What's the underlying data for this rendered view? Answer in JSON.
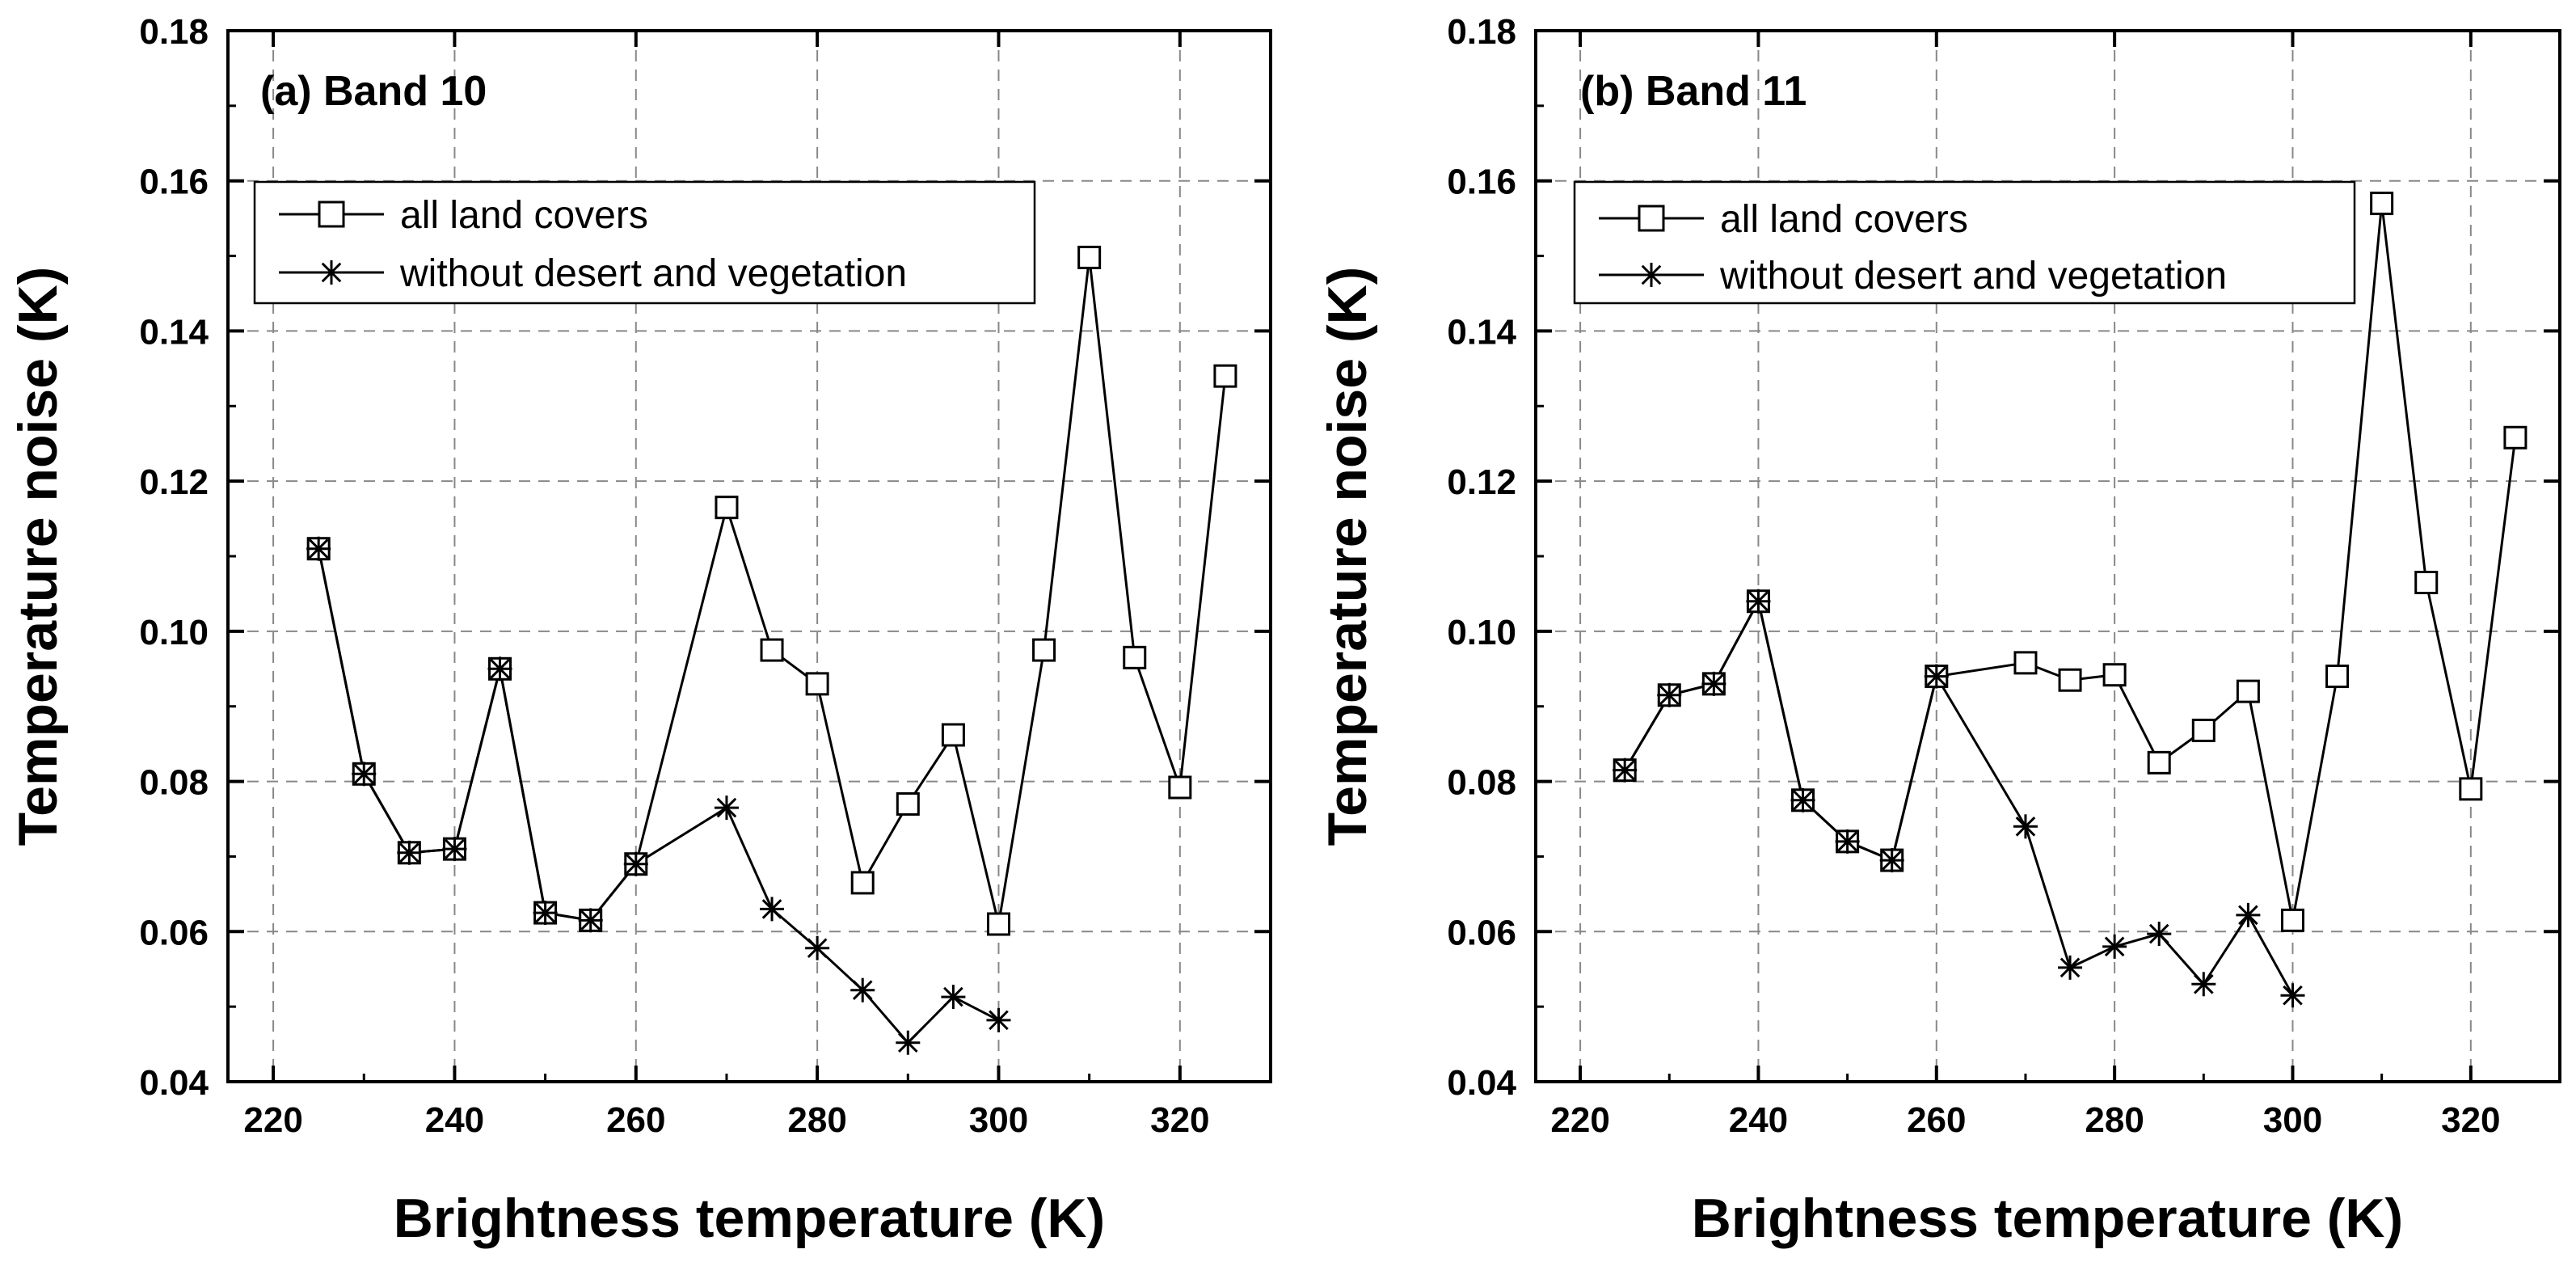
{
  "chart_data": [
    {
      "type": "line",
      "title": "(a) Band 10",
      "xlabel": "Brightness temperature (K)",
      "ylabel": "Temperature noise (K)",
      "xlim": [
        215,
        330
      ],
      "ylim": [
        0.04,
        0.18
      ],
      "xticks": [
        220,
        240,
        260,
        280,
        300,
        320
      ],
      "yticks": [
        0.04,
        0.06,
        0.08,
        0.1,
        0.12,
        0.14,
        0.16,
        0.18
      ],
      "xtick_labels": [
        "220",
        "240",
        "260",
        "280",
        "300",
        "320"
      ],
      "ytick_labels": [
        "0.04",
        "0.06",
        "0.08",
        "0.10",
        "0.12",
        "0.14",
        "0.16",
        "0.18"
      ],
      "grid": true,
      "legend_position": "top-left",
      "series": [
        {
          "name": "all land covers",
          "marker": "square",
          "x": [
            225,
            230,
            235,
            240,
            245,
            250,
            255,
            260,
            270,
            275,
            280,
            285,
            290,
            295,
            300,
            305,
            310,
            315,
            320,
            325
          ],
          "values": [
            0.111,
            0.081,
            0.0705,
            0.071,
            0.095,
            0.0625,
            0.0615,
            0.069,
            0.1165,
            0.0975,
            0.093,
            0.0665,
            0.077,
            0.0862,
            0.061,
            0.0975,
            0.1498,
            0.0965,
            0.0792,
            0.134
          ]
        },
        {
          "name": "without desert and vegetation",
          "marker": "asterisk",
          "x": [
            225,
            230,
            235,
            240,
            245,
            250,
            255,
            260,
            270,
            275,
            280,
            285,
            290,
            295,
            300
          ],
          "values": [
            0.111,
            0.081,
            0.0705,
            0.071,
            0.095,
            0.0625,
            0.0615,
            0.069,
            0.0765,
            0.063,
            0.0578,
            0.0522,
            0.0452,
            0.0513,
            0.0482
          ]
        }
      ]
    },
    {
      "type": "line",
      "title": "(b) Band 11",
      "xlabel": "Brightness temperature (K)",
      "ylabel": "Temperature noise (K)",
      "xlim": [
        215,
        330
      ],
      "ylim": [
        0.04,
        0.18
      ],
      "xticks": [
        220,
        240,
        260,
        280,
        300,
        320
      ],
      "yticks": [
        0.04,
        0.06,
        0.08,
        0.1,
        0.12,
        0.14,
        0.16,
        0.18
      ],
      "xtick_labels": [
        "220",
        "240",
        "260",
        "280",
        "300",
        "320"
      ],
      "ytick_labels": [
        "0.04",
        "0.06",
        "0.08",
        "0.10",
        "0.12",
        "0.14",
        "0.16",
        "0.18"
      ],
      "grid": true,
      "legend_position": "top-left",
      "series": [
        {
          "name": "all land covers",
          "marker": "square",
          "x": [
            225,
            230,
            235,
            240,
            245,
            250,
            255,
            260,
            270,
            275,
            280,
            285,
            290,
            295,
            300,
            305,
            310,
            315,
            320,
            325
          ],
          "values": [
            0.0815,
            0.0915,
            0.093,
            0.104,
            0.0775,
            0.072,
            0.0695,
            0.094,
            0.0958,
            0.0935,
            0.0942,
            0.0825,
            0.0868,
            0.092,
            0.0615,
            0.094,
            0.157,
            0.1065,
            0.079,
            0.1258
          ]
        },
        {
          "name": "without desert and vegetation",
          "marker": "asterisk",
          "x": [
            225,
            230,
            235,
            240,
            245,
            250,
            255,
            260,
            270,
            275,
            280,
            285,
            290,
            295,
            300
          ],
          "values": [
            0.0815,
            0.0915,
            0.093,
            0.104,
            0.0775,
            0.072,
            0.0695,
            0.094,
            0.074,
            0.0552,
            0.058,
            0.0597,
            0.053,
            0.0622,
            0.0515
          ]
        }
      ]
    }
  ]
}
